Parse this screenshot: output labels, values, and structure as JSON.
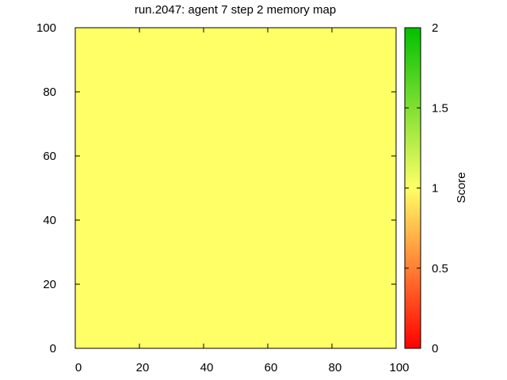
{
  "chart_data": {
    "type": "heatmap",
    "title": "run.2047: agent 7 step 2 memory map",
    "xlabel": "",
    "ylabel": "",
    "xlim": [
      0,
      100
    ],
    "ylim": [
      0,
      100
    ],
    "x_ticks": [
      0,
      20,
      40,
      60,
      80,
      100
    ],
    "y_ticks": [
      0,
      20,
      40,
      60,
      80,
      100
    ],
    "x_tick_labels": [
      "0",
      "20",
      "40",
      "60",
      "80",
      "100"
    ],
    "y_tick_labels": [
      "0",
      "20",
      "40",
      "60",
      "80",
      "100"
    ],
    "grid": false,
    "values": [
      [
        1
      ]
    ],
    "cell_color": "#ffff66",
    "colorbar": {
      "label": "Score",
      "range": [
        0,
        2
      ],
      "ticks": [
        0,
        0.5,
        1,
        1.5,
        2
      ],
      "tick_labels": [
        "0",
        "0.5",
        "1",
        "1.5",
        "2"
      ],
      "colors": [
        "#ff0000",
        "#ffff66",
        "#00c000"
      ]
    }
  }
}
